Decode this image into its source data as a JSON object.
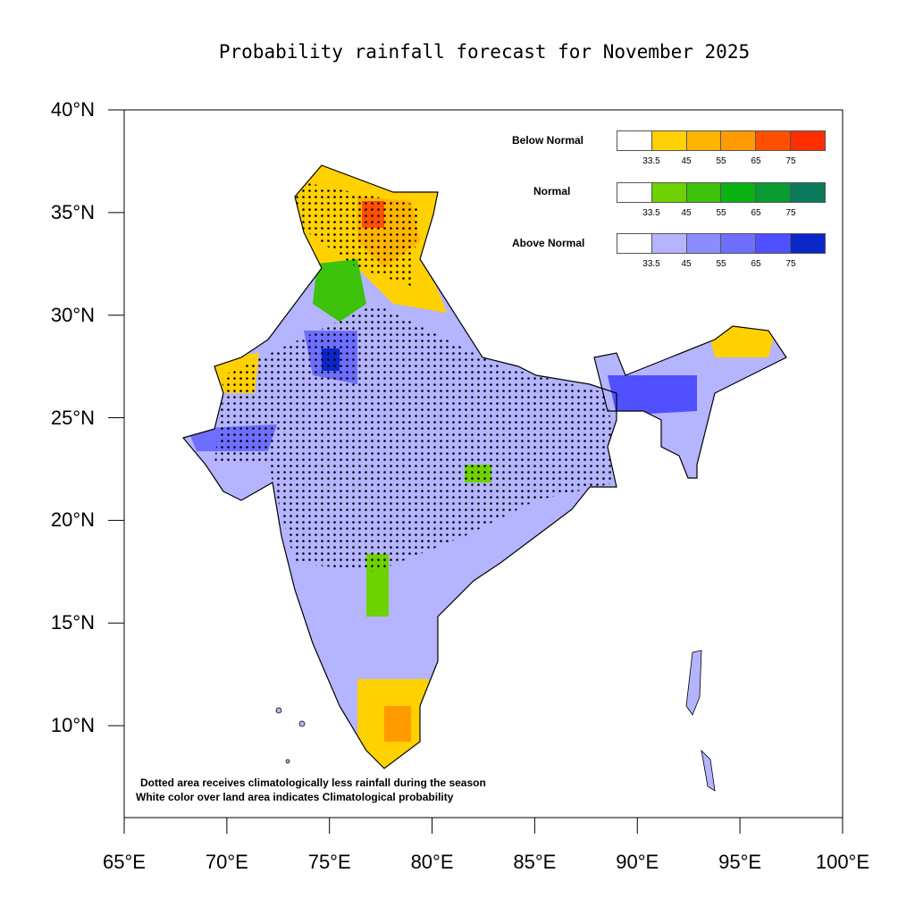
{
  "title": "Probability rainfall forecast for November 2025",
  "y_ticks": [
    "40°N",
    "35°N",
    "30°N",
    "25°N",
    "20°N",
    "15°N",
    "10°N"
  ],
  "x_ticks": [
    "65°E",
    "70°E",
    "75°E",
    "80°E",
    "85°E",
    "90°E",
    "95°E",
    "100°E"
  ],
  "legend": [
    {
      "label": "Below Normal",
      "colors": [
        "#ffffff",
        "#ffd100",
        "#ffb400",
        "#ff9a00",
        "#ff5000",
        "#ff2e00"
      ]
    },
    {
      "label": "Normal",
      "colors": [
        "#ffffff",
        "#6ed200",
        "#3cc20a",
        "#0ab214",
        "#0a9a32",
        "#0a7a5a"
      ]
    },
    {
      "label": "Above Normal",
      "colors": [
        "#ffffff",
        "#b4b4ff",
        "#8c8cff",
        "#6e6eff",
        "#5050ff",
        "#0a28c8"
      ]
    }
  ],
  "legend_ticks": [
    "33.5",
    "45",
    "55",
    "65",
    "75"
  ],
  "notes": [
    "Dotted area receives climatologically less rainfall during the season",
    "White color over land area indicates Climatological probability"
  ]
}
